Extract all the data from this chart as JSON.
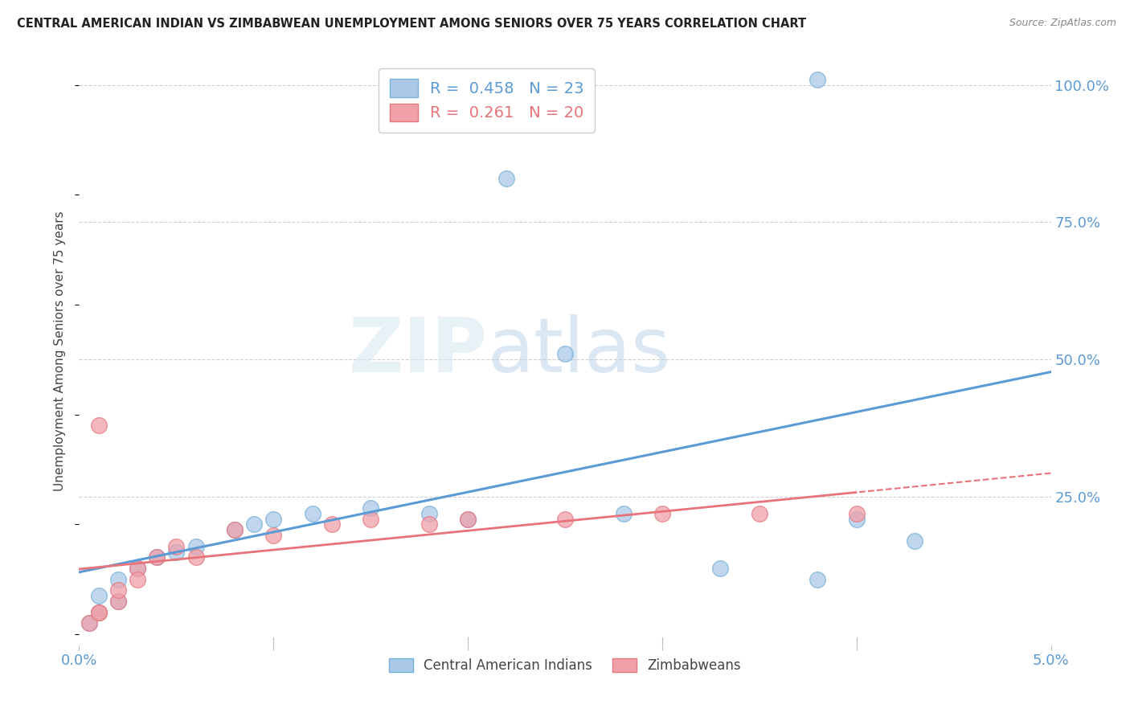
{
  "title": "CENTRAL AMERICAN INDIAN VS ZIMBABWEAN UNEMPLOYMENT AMONG SENIORS OVER 75 YEARS CORRELATION CHART",
  "source": "Source: ZipAtlas.com",
  "ylabel": "Unemployment Among Seniors over 75 years",
  "xlim": [
    0.0,
    0.05
  ],
  "ylim": [
    -0.02,
    1.05
  ],
  "blue_R": 0.458,
  "blue_N": 23,
  "pink_R": 0.261,
  "pink_N": 20,
  "blue_x": [
    0.0005,
    0.001,
    0.001,
    0.002,
    0.002,
    0.003,
    0.004,
    0.005,
    0.006,
    0.008,
    0.009,
    0.01,
    0.012,
    0.015,
    0.018,
    0.02,
    0.022,
    0.025,
    0.028,
    0.033,
    0.038,
    0.04,
    0.043
  ],
  "blue_y": [
    0.02,
    0.04,
    0.07,
    0.06,
    0.1,
    0.12,
    0.14,
    0.15,
    0.16,
    0.19,
    0.2,
    0.21,
    0.22,
    0.23,
    0.22,
    0.21,
    0.83,
    0.51,
    0.22,
    0.12,
    0.1,
    0.21,
    0.17
  ],
  "blue_outlier_x": [
    0.038
  ],
  "blue_outlier_y": [
    1.01
  ],
  "pink_x": [
    0.0005,
    0.001,
    0.001,
    0.002,
    0.002,
    0.003,
    0.003,
    0.004,
    0.005,
    0.006,
    0.008,
    0.01,
    0.013,
    0.015,
    0.018,
    0.02,
    0.025,
    0.03,
    0.035,
    0.04
  ],
  "pink_y": [
    0.02,
    0.04,
    0.04,
    0.06,
    0.08,
    0.12,
    0.1,
    0.14,
    0.16,
    0.14,
    0.19,
    0.18,
    0.2,
    0.21,
    0.2,
    0.21,
    0.21,
    0.22,
    0.22,
    0.22
  ],
  "pink_outlier_x": [
    0.001
  ],
  "pink_outlier_y": [
    0.38
  ],
  "blue_line_color": "#5b9bd5",
  "pink_line_color": "#e8737a",
  "blue_scatter_facecolor": "#aac9e8",
  "blue_scatter_edgecolor": "#7ab0d8",
  "pink_scatter_facecolor": "#f0a0a8",
  "pink_scatter_edgecolor": "#e87880",
  "background_color": "#ffffff",
  "watermark_zip": "ZIP",
  "watermark_atlas": "atlas",
  "grid_color": "#d0d0d0",
  "tick_color": "#5b9bd5",
  "label_color": "#444444",
  "source_color": "#888888",
  "title_color": "#222222",
  "legend_edge_color": "#cccccc",
  "legend_blue_face": "#aac9e8",
  "legend_blue_edge": "#7ab0d8",
  "legend_pink_face": "#f0a0a8",
  "legend_pink_edge": "#e87880"
}
